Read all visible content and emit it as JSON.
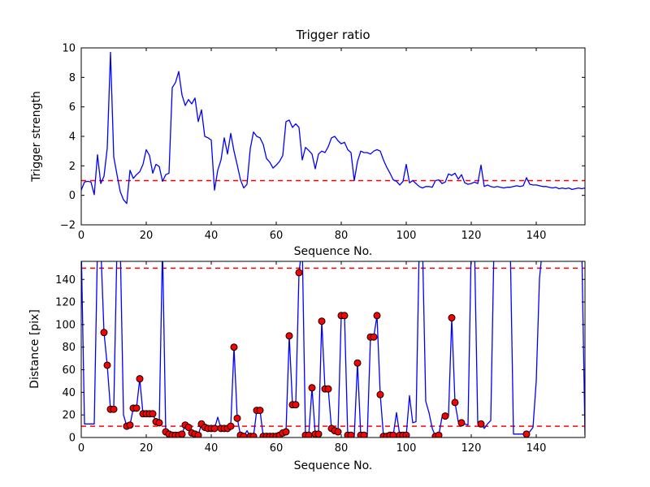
{
  "figure": {
    "background": "#ffffff"
  },
  "chart_data": [
    {
      "type": "line",
      "title": "Trigger ratio",
      "xlabel": "Sequence No.",
      "ylabel": "Trigger strength",
      "xlim": [
        0,
        155
      ],
      "ylim": [
        -2,
        10
      ],
      "xticks": [
        0,
        20,
        40,
        60,
        80,
        100,
        120,
        140
      ],
      "yticks": [
        -2,
        0,
        2,
        4,
        6,
        8,
        10
      ],
      "grid": false,
      "line_color": "#0000ff",
      "threshold_lines": [
        1
      ],
      "threshold_color": "#ff0000",
      "x_start": 0,
      "x_step": 1,
      "y": [
        0.35,
        0.9,
        0.95,
        0.9,
        0.05,
        2.75,
        0.8,
        1.3,
        3.2,
        9.7,
        2.6,
        1.4,
        0.25,
        -0.3,
        -0.55,
        1.7,
        1.15,
        1.4,
        1.6,
        2.1,
        3.1,
        2.7,
        1.5,
        2.1,
        1.95,
        0.95,
        1.4,
        1.5,
        7.3,
        7.65,
        8.4,
        6.8,
        6.1,
        6.5,
        6.2,
        6.6,
        5.0,
        5.8,
        4.0,
        3.9,
        3.75,
        0.35,
        1.7,
        2.4,
        3.9,
        2.8,
        4.2,
        3.0,
        2.05,
        1.05,
        0.5,
        0.75,
        3.15,
        4.3,
        4.0,
        3.9,
        3.45,
        2.5,
        2.25,
        1.85,
        2.05,
        2.3,
        2.7,
        5.0,
        5.1,
        4.6,
        4.85,
        4.6,
        2.4,
        3.25,
        3.05,
        2.8,
        1.8,
        2.8,
        3.0,
        2.9,
        3.3,
        3.9,
        4.0,
        3.7,
        3.5,
        3.6,
        3.1,
        2.9,
        1.0,
        2.3,
        3.0,
        2.9,
        2.9,
        2.8,
        3.0,
        3.1,
        3.0,
        2.4,
        1.9,
        1.5,
        1.05,
        0.95,
        0.7,
        0.95,
        2.1,
        0.85,
        1.0,
        0.8,
        0.6,
        0.5,
        0.6,
        0.6,
        0.55,
        1.0,
        1.05,
        0.8,
        0.9,
        1.45,
        1.35,
        1.5,
        1.1,
        1.4,
        0.85,
        0.75,
        0.8,
        0.9,
        0.8,
        2.05,
        0.6,
        0.7,
        0.6,
        0.55,
        0.6,
        0.55,
        0.5,
        0.55,
        0.55,
        0.6,
        0.65,
        0.6,
        0.65,
        1.2,
        0.75,
        0.7,
        0.7,
        0.65,
        0.6,
        0.6,
        0.55,
        0.5,
        0.55,
        0.45,
        0.5,
        0.45,
        0.5,
        0.4,
        0.45,
        0.5,
        0.45,
        0.5
      ]
    },
    {
      "type": "line-scatter",
      "title": "",
      "xlabel": "Sequence No.",
      "ylabel": "Distance [pix]",
      "xlim": [
        0,
        155
      ],
      "ylim": [
        0,
        156
      ],
      "xticks": [
        0,
        20,
        40,
        60,
        80,
        100,
        120,
        140
      ],
      "yticks": [
        0,
        20,
        40,
        60,
        80,
        100,
        120,
        140
      ],
      "grid": false,
      "line_color": "#0000ff",
      "marker_color": "#ff0000",
      "marker_edge_color": "#000000",
      "threshold_lines": [
        10,
        150
      ],
      "threshold_color": "#ff0000",
      "x_start": 0,
      "x_step": 1,
      "y": [
        170,
        12,
        12,
        12,
        12,
        170,
        170,
        93,
        64,
        25,
        25,
        170,
        170,
        20,
        10,
        11,
        26,
        26,
        52,
        21,
        21,
        21,
        21,
        14,
        13,
        170,
        5,
        3,
        2,
        2,
        2,
        3,
        11,
        9,
        4,
        3,
        2,
        12,
        9,
        8,
        8,
        8,
        18,
        8,
        8,
        8,
        10,
        80,
        17,
        2,
        1,
        6,
        1,
        1,
        24,
        24,
        1,
        1,
        1,
        1,
        1,
        2,
        4,
        5,
        90,
        29,
        29,
        146,
        170,
        2,
        2,
        44,
        3,
        3,
        103,
        43,
        43,
        8,
        6,
        5,
        108,
        108,
        2,
        2,
        1,
        66,
        2,
        2,
        1,
        89,
        89,
        108,
        38,
        1,
        1,
        2,
        2,
        22,
        2,
        2,
        2,
        37,
        13,
        14,
        170,
        170,
        32,
        22,
        8,
        1,
        2,
        18,
        19,
        19,
        106,
        31,
        14,
        13,
        12,
        11,
        170,
        170,
        13,
        12,
        8,
        12,
        15,
        170,
        170,
        170,
        170,
        170,
        170,
        3,
        3,
        3,
        3,
        3,
        5,
        9,
        50,
        141,
        170,
        170,
        170,
        170,
        170,
        170,
        170,
        170,
        170,
        170,
        170,
        170,
        170,
        2
      ],
      "dot_x": [
        7,
        8,
        9,
        10,
        14,
        15,
        16,
        17,
        18,
        19,
        20,
        21,
        22,
        23,
        24,
        26,
        27,
        28,
        29,
        30,
        31,
        32,
        33,
        34,
        35,
        36,
        37,
        38,
        39,
        40,
        41,
        43,
        44,
        45,
        46,
        47,
        48,
        49,
        50,
        52,
        53,
        54,
        55,
        56,
        57,
        58,
        59,
        60,
        61,
        62,
        63,
        64,
        65,
        66,
        67,
        69,
        70,
        71,
        72,
        73,
        74,
        75,
        76,
        77,
        78,
        79,
        80,
        81,
        82,
        83,
        85,
        86,
        87,
        89,
        90,
        91,
        92,
        93,
        94,
        95,
        96,
        98,
        99,
        100,
        109,
        110,
        112,
        114,
        115,
        117,
        123,
        137
      ]
    }
  ]
}
